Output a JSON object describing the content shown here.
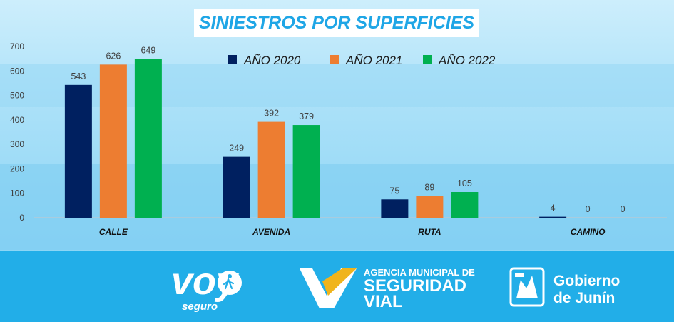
{
  "chart_data": {
    "type": "bar",
    "title": "SINIESTROS POR SUPERFICIES",
    "categories": [
      "CALLE",
      "AVENIDA",
      "RUTA",
      "CAMINO"
    ],
    "series": [
      {
        "name": "AÑO 2020",
        "color": "#002060",
        "values": [
          543,
          249,
          75,
          4
        ]
      },
      {
        "name": "AÑO 2021",
        "color": "#ED7D31",
        "values": [
          626,
          392,
          89,
          0
        ]
      },
      {
        "name": "AÑO 2022",
        "color": "#00B050",
        "values": [
          649,
          379,
          105,
          0
        ]
      }
    ],
    "yticks": [
      0,
      100,
      200,
      300,
      400,
      500,
      600,
      700
    ],
    "ylim": [
      0,
      700
    ],
    "legend_position": "top",
    "grid": false
  },
  "footer": {
    "brand_main": "voy",
    "brand_sub": "seguro",
    "agency_line1": "AGENCIA MUNICIPAL DE",
    "agency_line2": "SEGURIDAD",
    "agency_line3": "VIAL",
    "gov_line1": "Gobierno",
    "gov_line2": "de Junín"
  },
  "colors": {
    "title": "#1fa6e6",
    "footer_bg": "#22aee8",
    "sky_top": "#bde8fb",
    "sky_mid": "#93d8f5"
  }
}
